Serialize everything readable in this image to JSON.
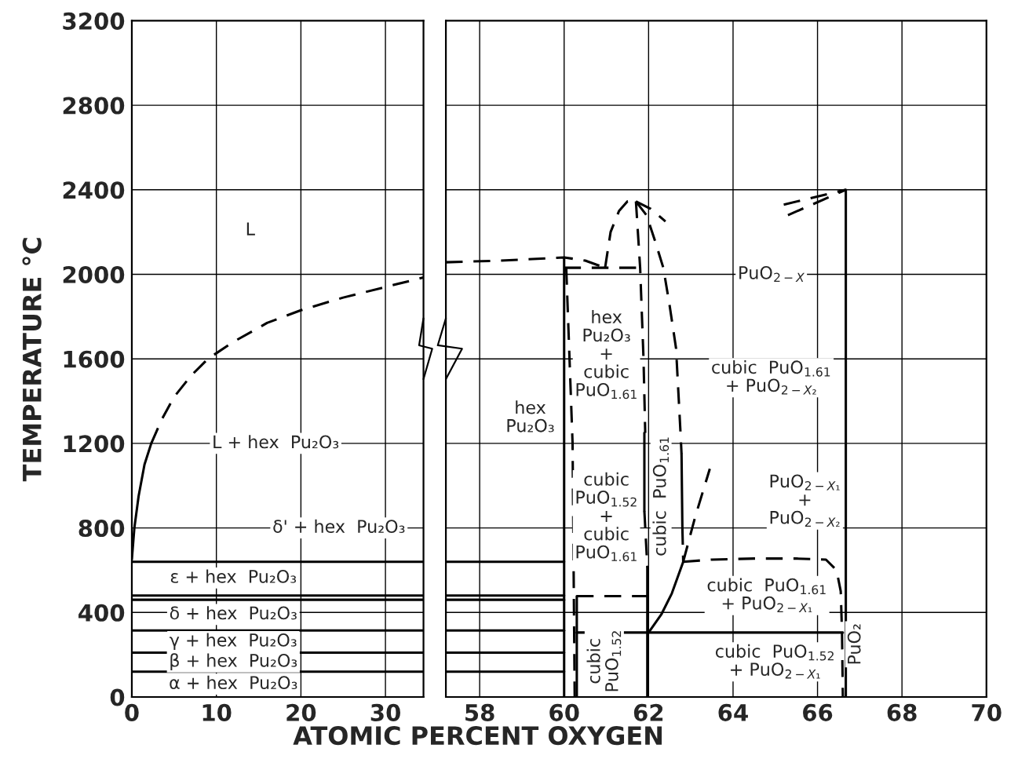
{
  "chart_data": [
    {
      "type": "line",
      "xlabel": "ATOMIC PERCENT OXYGEN",
      "ylabel": "TEMPERATURE °C",
      "xlim": [
        0,
        34.5
      ],
      "xticks": [
        0,
        10,
        20,
        30
      ],
      "ylim": [
        0,
        3200
      ],
      "yticks": [
        0,
        400,
        800,
        1200,
        1600,
        2000,
        2400,
        2800,
        3200
      ],
      "grid": true,
      "legend": false,
      "marker": "none",
      "series": [
        {
          "x": [
            0,
            0.3,
            0.8,
            1.5,
            2.3
          ],
          "values": [
            650,
            800,
            950,
            1100,
            1200
          ],
          "color": "#000000",
          "line_style": "solid"
        },
        {
          "x": [
            2.3,
            3.5,
            5,
            7,
            9,
            12,
            16,
            20,
            25,
            30,
            34.5
          ],
          "values": [
            1200,
            1310,
            1420,
            1520,
            1600,
            1680,
            1770,
            1830,
            1890,
            1940,
            1985
          ],
          "color": "#000000",
          "line_style": "dashed"
        },
        {
          "x": [
            0,
            34.5
          ],
          "values": [
            640,
            640
          ],
          "color": "#000000",
          "line_style": "solid"
        },
        {
          "x": [
            0,
            34.5
          ],
          "values": [
            480,
            480
          ],
          "color": "#000000",
          "line_style": "solid"
        },
        {
          "x": [
            0,
            34.5
          ],
          "values": [
            460,
            460
          ],
          "color": "#000000",
          "line_style": "solid"
        },
        {
          "x": [
            0,
            34.5
          ],
          "values": [
            315,
            315
          ],
          "color": "#000000",
          "line_style": "solid"
        },
        {
          "x": [
            0,
            34.5
          ],
          "values": [
            210,
            210
          ],
          "color": "#000000",
          "line_style": "solid"
        },
        {
          "x": [
            0,
            34.5
          ],
          "values": [
            120,
            120
          ],
          "color": "#000000",
          "line_style": "solid"
        }
      ],
      "annotations": [
        "L",
        "L + hex  Pu₂O₃",
        "δ' + hex  Pu₂O₃",
        "ε + hex  Pu₂O₃",
        "δ + hex  Pu₂O₃",
        "γ + hex  Pu₂O₃",
        "β + hex  Pu₂O₃",
        "α + hex  Pu₂O₃"
      ]
    },
    {
      "type": "line",
      "xlim": [
        57.2,
        70
      ],
      "xticks": [
        58,
        60,
        62,
        64,
        66,
        68,
        70
      ],
      "ylim": [
        0,
        3200
      ],
      "yticks": [
        0,
        400,
        800,
        1200,
        1600,
        2000,
        2400,
        2800,
        3200
      ],
      "grid": true,
      "legend": false,
      "marker": "none",
      "tick_labels": "x",
      "series": [
        {
          "x": [
            57.2,
            60
          ],
          "values": [
            640,
            640
          ],
          "color": "#000000",
          "line_style": "solid"
        },
        {
          "x": [
            57.2,
            60
          ],
          "values": [
            480,
            480
          ],
          "color": "#000000",
          "line_style": "solid"
        },
        {
          "x": [
            57.2,
            60
          ],
          "values": [
            460,
            460
          ],
          "color": "#000000",
          "line_style": "solid"
        },
        {
          "x": [
            57.2,
            60
          ],
          "values": [
            315,
            315
          ],
          "color": "#000000",
          "line_style": "solid"
        },
        {
          "x": [
            57.2,
            60
          ],
          "values": [
            210,
            210
          ],
          "color": "#000000",
          "line_style": "solid"
        },
        {
          "x": [
            57.2,
            60
          ],
          "values": [
            120,
            120
          ],
          "color": "#000000",
          "line_style": "solid"
        },
        {
          "x": [
            57.2,
            58.5,
            60,
            60.5,
            60.97
          ],
          "values": [
            2057,
            2065,
            2080,
            2065,
            2031
          ],
          "color": "#000000",
          "line_style": "dashed"
        },
        {
          "x": [
            60.97,
            61.1,
            61.3,
            61.5,
            61.7
          ],
          "values": [
            2031,
            2200,
            2300,
            2345,
            2345
          ],
          "color": "#000000",
          "line_style": "dashed"
        },
        {
          "x": [
            61.7,
            62.05,
            62.4
          ],
          "values": [
            2345,
            2310,
            2250
          ],
          "color": "#000000",
          "line_style": "dashed"
        },
        {
          "x": [
            61.7,
            61.95,
            62.15,
            62.35,
            62.5,
            62.65,
            62.76,
            62.78
          ],
          "values": [
            2345,
            2280,
            2160,
            2030,
            1850,
            1650,
            1235,
            1150
          ],
          "color": "#000000",
          "line_style": "dashed"
        },
        {
          "x": [
            62.78,
            62.8
          ],
          "values": [
            1150,
            800
          ],
          "color": "#000000",
          "line_style": "solid"
        },
        {
          "x": [
            62.8,
            62.82
          ],
          "values": [
            800,
            640
          ],
          "color": "#000000",
          "line_style": "dashed"
        },
        {
          "x": [
            60,
            61.8
          ],
          "values": [
            2031,
            2031
          ],
          "color": "#000000",
          "line_style": "dashed"
        },
        {
          "x": [
            60,
            60
          ],
          "values": [
            2080,
            0
          ],
          "color": "#000000",
          "line_style": "solid"
        },
        {
          "x": [
            60.05,
            60.2,
            60.25
          ],
          "values": [
            2030,
            1200,
            0
          ],
          "color": "#000000",
          "line_style": "dashed"
        },
        {
          "x": [
            61.7,
            61.8,
            61.88,
            61.92
          ],
          "values": [
            2345,
            2031,
            1600,
            1250
          ],
          "color": "#000000",
          "line_style": "dashed"
        },
        {
          "x": [
            61.9,
            61.9
          ],
          "values": [
            1250,
            880
          ],
          "color": "#000000",
          "line_style": "solid"
        },
        {
          "x": [
            61.9,
            61.97
          ],
          "values": [
            880,
            616
          ],
          "color": "#000000",
          "line_style": "dashed"
        },
        {
          "x": [
            61.97,
            61.97
          ],
          "values": [
            616,
            0
          ],
          "color": "#000000",
          "line_style": "solid"
        },
        {
          "x": [
            60.3,
            61.97
          ],
          "values": [
            477,
            477
          ],
          "color": "#000000",
          "line_style": "dashed"
        },
        {
          "x": [
            60.3,
            60.3
          ],
          "values": [
            477,
            0
          ],
          "color": "#000000",
          "line_style": "solid"
        },
        {
          "x": [
            60.3,
            66.6
          ],
          "values": [
            305,
            305
          ],
          "color": "#000000",
          "line_style": "solid"
        },
        {
          "x": [
            62.0,
            62.3,
            62.55,
            62.82
          ],
          "values": [
            305,
            390,
            490,
            640
          ],
          "color": "#000000",
          "line_style": "solid"
        },
        {
          "x": [
            62.82,
            63.1,
            63.45
          ],
          "values": [
            640,
            850,
            1080
          ],
          "color": "#000000",
          "line_style": "dashed"
        },
        {
          "x": [
            62.82,
            63.5,
            64.5,
            65.5,
            66.2,
            66.45,
            66.55,
            66.58,
            66.6
          ],
          "values": [
            640,
            650,
            655,
            655,
            650,
            600,
            500,
            305,
            0
          ],
          "color": "#000000",
          "line_style": "dashed"
        },
        {
          "x": [
            66.67,
            66.67
          ],
          "values": [
            2400,
            0
          ],
          "color": "#000000",
          "line_style": "solid"
        },
        {
          "x": [
            65.2,
            66.67
          ],
          "values": [
            2330,
            2400
          ],
          "color": "#000000",
          "line_style": "dashed"
        },
        {
          "x": [
            65.3,
            66.67
          ],
          "values": [
            2280,
            2400
          ],
          "color": "#000000",
          "line_style": "dashed"
        }
      ],
      "annotations": [
        "hex\nPu₂O₃",
        "hex\nPu₂O₃\n+\ncubic\nPuO$_{1.61}$",
        "cubic\nPuO$_{1.52}$\n+\ncubic\nPuO$_{1.61}$",
        "cubic  PuO$_{1.61}$",
        "cubic\nPuO$_{1.52}$",
        "PuO$_{2−X}$",
        "cubic  PuO$_{1.61}$\n+ PuO$_{2−X₂}$",
        "PuO$_{2−X₁}$\n+\nPuO$_{2−X₂}$",
        "cubic  PuO$_{1.61}$\n+ PuO$_{2−X₁}$",
        "cubic  PuO$_{1.52}$\n+ PuO$_{2−X₁}$",
        "PuO₂"
      ]
    }
  ]
}
